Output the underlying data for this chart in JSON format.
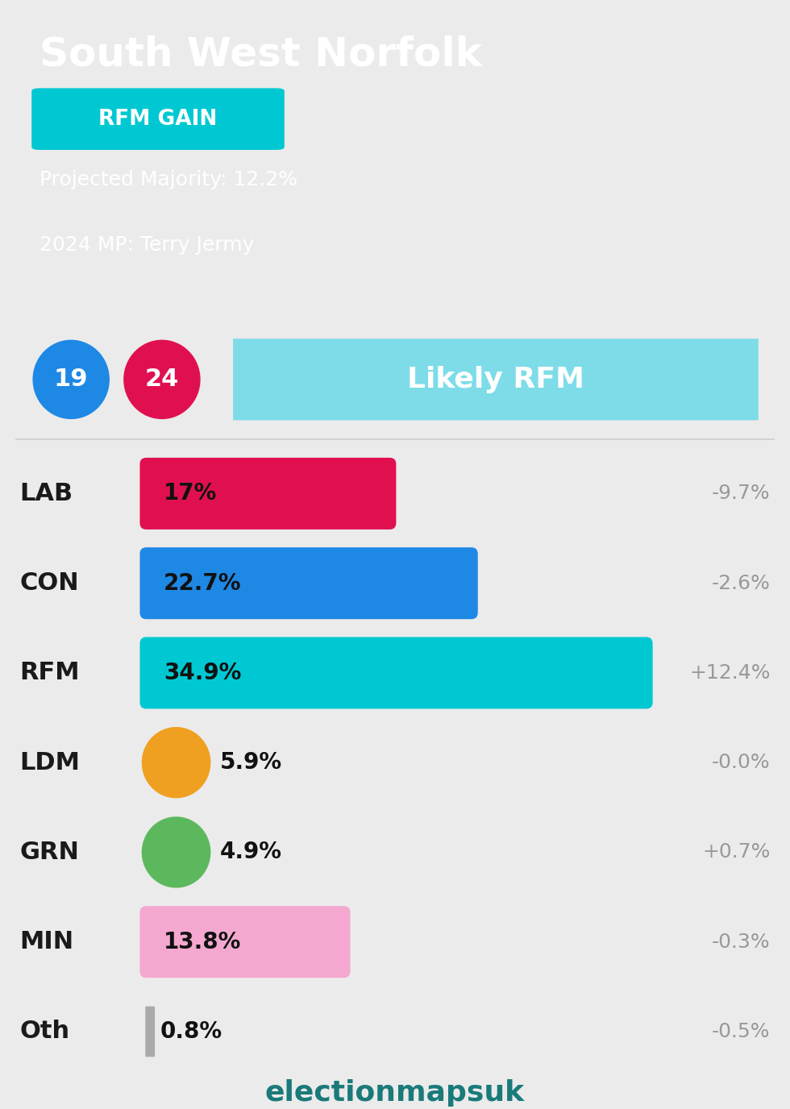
{
  "title": "South West Norfolk",
  "gain_label": "RFM GAIN",
  "gain_color": "#00c8d2",
  "projected_majority": "Projected Majority: 12.2%",
  "mp_2024": "2024 MP: Terry Jermy",
  "header_bg": "#0d1f2d",
  "body_bg": "#ebebeb",
  "circle_19_color": "#1e88e5",
  "circle_24_color": "#e01050",
  "likely_label": "Likely RFM",
  "likely_color": "#7ddce8",
  "parties": [
    "LAB",
    "CON",
    "RFM",
    "LDM",
    "GRN",
    "MIN",
    "Oth"
  ],
  "values": [
    17.0,
    22.7,
    34.9,
    5.9,
    4.9,
    13.8,
    0.8
  ],
  "changes": [
    "-9.7%",
    "-2.6%",
    "+12.4%",
    "-0.0%",
    "+0.7%",
    "-0.3%",
    "-0.5%"
  ],
  "bar_colors": [
    "#e01050",
    "#1e88e5",
    "#00c8d2",
    "#f0a020",
    "#5cb85c",
    "#f4a8d0",
    "#aaaaaa"
  ],
  "bar_labels": [
    "17%",
    "22.7%",
    "34.9%",
    "5.9%",
    "4.9%",
    "13.8%",
    "0.8%"
  ],
  "max_val": 35.0,
  "footer_text": "electionmapsuk",
  "footer_color": "#1a7a7a",
  "change_color": "#999999",
  "party_font_size": 22,
  "bar_label_font_size": 20,
  "change_font_size": 18
}
